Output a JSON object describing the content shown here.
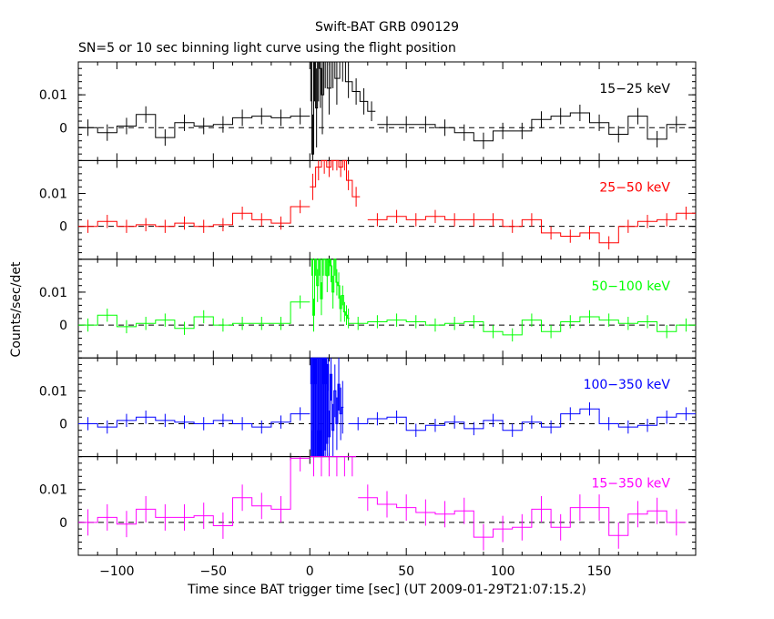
{
  "chart_data": {
    "type": "line",
    "title": "Swift-BAT GRB 090129",
    "subtitle": "SN=5 or 10 sec binning light curve using the flight position",
    "xlabel": "Time since BAT trigger time [sec] (UT 2009-01-29T21:07:15.2)",
    "ylabel": "Counts/sec/det",
    "xlim": [
      -120,
      200
    ],
    "ylim": [
      -0.01,
      0.02
    ],
    "x_ticks": [
      -100,
      -50,
      0,
      50,
      100,
      150
    ],
    "x_tick_labels": [
      "−100",
      "−50",
      "0",
      "50",
      "100",
      "150"
    ],
    "y_ticks": [
      0,
      0.01
    ],
    "y_tick_labels": [
      "0",
      "0.01"
    ],
    "reference_line": 0,
    "panels": [
      {
        "label": "15−25 keV",
        "color": "#000000",
        "pre": {
          "x": [
            -115,
            -105,
            -95,
            -85,
            -75,
            -65,
            -55,
            -45,
            -35,
            -25,
            -15,
            -5
          ],
          "y": [
            0.0,
            -0.0015,
            0.0005,
            0.004,
            -0.003,
            0.0015,
            0.0005,
            0.001,
            0.003,
            0.0035,
            0.003,
            0.0035
          ],
          "err": [
            0.0025,
            0.0025,
            0.0025,
            0.0025,
            0.0025,
            0.0025,
            0.0025,
            0.0025,
            0.0025,
            0.0025,
            0.0025,
            0.0025
          ]
        },
        "burst": {
          "x": [
            0.5,
            1.5,
            2.5,
            3.5,
            4.5,
            5.5,
            6.5,
            8,
            10,
            12,
            14,
            17,
            20,
            24,
            28,
            32
          ],
          "y": [
            0.02,
            -0.008,
            0.02,
            0.006,
            0.02,
            0.018,
            0.01,
            0.02,
            0.012,
            0.02,
            0.015,
            0.02,
            0.014,
            0.011,
            0.008,
            0.005
          ],
          "err": [
            0.012,
            0.012,
            0.012,
            0.012,
            0.012,
            0.012,
            0.012,
            0.008,
            0.008,
            0.008,
            0.008,
            0.006,
            0.005,
            0.004,
            0.004,
            0.003
          ]
        },
        "post": {
          "x": [
            40,
            50,
            60,
            70,
            80,
            90,
            100,
            110,
            120,
            130,
            140,
            150,
            160,
            170,
            180,
            190
          ],
          "y": [
            0.001,
            0.001,
            0.001,
            0.0,
            -0.0015,
            -0.004,
            -0.001,
            -0.001,
            0.0025,
            0.0035,
            0.0045,
            0.0015,
            -0.002,
            0.0035,
            -0.0035,
            0.001
          ],
          "err": [
            0.0025,
            0.0025,
            0.0025,
            0.0025,
            0.0025,
            0.0025,
            0.0025,
            0.0025,
            0.0025,
            0.0025,
            0.0025,
            0.0025,
            0.0025,
            0.0025,
            0.0025,
            0.0025
          ]
        }
      },
      {
        "label": "25−50 keV",
        "color": "#ff0000",
        "pre": {
          "x": [
            -115,
            -105,
            -95,
            -85,
            -75,
            -65,
            -55,
            -45,
            -35,
            -25,
            -15,
            -5
          ],
          "y": [
            0.0,
            0.0015,
            0.0,
            0.0005,
            0.0,
            0.001,
            0.0,
            0.0005,
            0.004,
            0.002,
            0.001,
            0.006
          ],
          "err": [
            0.002,
            0.002,
            0.002,
            0.002,
            0.002,
            0.002,
            0.002,
            0.002,
            0.002,
            0.002,
            0.002,
            0.002
          ]
        },
        "burst": {
          "x": [
            1.5,
            4.5,
            7.5,
            10,
            12,
            14,
            16,
            18,
            20,
            24
          ],
          "y": [
            0.012,
            0.018,
            0.02,
            0.018,
            0.02,
            0.02,
            0.018,
            0.02,
            0.014,
            0.009
          ],
          "err": [
            0.004,
            0.004,
            0.004,
            0.003,
            0.003,
            0.003,
            0.003,
            0.003,
            0.003,
            0.003
          ]
        },
        "post": {
          "x": [
            35,
            45,
            55,
            65,
            75,
            85,
            95,
            105,
            115,
            125,
            135,
            145,
            155,
            165,
            175,
            185,
            195
          ],
          "y": [
            0.002,
            0.003,
            0.002,
            0.003,
            0.002,
            0.002,
            0.002,
            0.0,
            0.002,
            -0.002,
            -0.003,
            -0.002,
            -0.005,
            0.0,
            0.0015,
            0.002,
            0.004
          ],
          "err": [
            0.002,
            0.002,
            0.002,
            0.002,
            0.002,
            0.002,
            0.002,
            0.002,
            0.002,
            0.002,
            0.002,
            0.002,
            0.002,
            0.002,
            0.002,
            0.002,
            0.002
          ]
        }
      },
      {
        "label": "50−100 keV",
        "color": "#00ff00",
        "pre": {
          "x": [
            -115,
            -105,
            -95,
            -85,
            -75,
            -65,
            -55,
            -45,
            -35,
            -25,
            -15,
            -5
          ],
          "y": [
            0.0,
            0.003,
            -0.0005,
            0.0005,
            0.0015,
            -0.001,
            0.0025,
            0.0,
            0.0005,
            0.0005,
            0.0005,
            0.007
          ],
          "err": [
            0.002,
            0.002,
            0.002,
            0.002,
            0.002,
            0.002,
            0.002,
            0.002,
            0.002,
            0.002,
            0.002,
            0.002
          ]
        },
        "burst": {
          "x": [
            1,
            2,
            3,
            4,
            5,
            6,
            7,
            8,
            9,
            10,
            11,
            12,
            13,
            14,
            15,
            16,
            17,
            18,
            19,
            20
          ],
          "y": [
            0.02,
            0.003,
            0.02,
            0.012,
            0.02,
            0.008,
            0.02,
            0.02,
            0.015,
            0.02,
            0.018,
            0.01,
            0.02,
            0.013,
            0.012,
            0.005,
            0.009,
            0.004,
            0.003,
            0.002
          ],
          "err": [
            0.005,
            0.005,
            0.005,
            0.005,
            0.005,
            0.005,
            0.005,
            0.005,
            0.005,
            0.005,
            0.005,
            0.005,
            0.005,
            0.004,
            0.004,
            0.004,
            0.003,
            0.003,
            0.003,
            0.003
          ]
        },
        "post": {
          "x": [
            25,
            35,
            45,
            55,
            65,
            75,
            85,
            95,
            105,
            115,
            125,
            135,
            145,
            155,
            165,
            175,
            185,
            195
          ],
          "y": [
            0.0005,
            0.001,
            0.0015,
            0.001,
            0.0,
            0.0005,
            0.001,
            -0.002,
            -0.003,
            0.0015,
            -0.002,
            0.001,
            0.0025,
            0.0015,
            0.0005,
            0.001,
            -0.002,
            0.0
          ],
          "err": [
            0.002,
            0.002,
            0.002,
            0.002,
            0.002,
            0.002,
            0.002,
            0.002,
            0.002,
            0.002,
            0.002,
            0.002,
            0.002,
            0.002,
            0.002,
            0.002,
            0.002,
            0.002
          ]
        }
      },
      {
        "label": "100−350 keV",
        "color": "#0000ff",
        "pre": {
          "x": [
            -115,
            -105,
            -95,
            -85,
            -75,
            -65,
            -55,
            -45,
            -35,
            -25,
            -15,
            -5
          ],
          "y": [
            0.0,
            -0.001,
            0.001,
            0.002,
            0.001,
            0.0005,
            0.0,
            0.001,
            0.0,
            -0.001,
            0.0005,
            0.003
          ],
          "err": [
            0.002,
            0.002,
            0.002,
            0.002,
            0.002,
            0.002,
            0.002,
            0.002,
            0.002,
            0.002,
            0.002,
            0.002
          ]
        },
        "burst": {
          "x": [
            0.5,
            1,
            1.5,
            2,
            2.5,
            3,
            3.5,
            4,
            4.5,
            5,
            5.5,
            6,
            6.5,
            7,
            7.5,
            8,
            8.5,
            9,
            9.5,
            10,
            11,
            12,
            13,
            14,
            15,
            16,
            17
          ],
          "y": [
            0.02,
            -0.01,
            0.02,
            -0.01,
            0.02,
            -0.01,
            0.02,
            -0.01,
            0.02,
            -0.01,
            0.02,
            -0.01,
            0.02,
            -0.01,
            0.02,
            -0.008,
            0.02,
            -0.006,
            0.018,
            -0.004,
            0.015,
            -0.002,
            0.01,
            0.0,
            0.012,
            0.003,
            0.005
          ],
          "err": [
            0.008,
            0.008,
            0.008,
            0.008,
            0.008,
            0.008,
            0.008,
            0.008,
            0.008,
            0.008,
            0.008,
            0.008,
            0.008,
            0.008,
            0.008,
            0.008,
            0.008,
            0.008,
            0.008,
            0.008,
            0.008,
            0.008,
            0.008,
            0.008,
            0.008,
            0.008,
            0.008
          ]
        },
        "post": {
          "x": [
            25,
            35,
            45,
            55,
            65,
            75,
            85,
            95,
            105,
            115,
            125,
            135,
            145,
            155,
            165,
            175,
            185,
            195
          ],
          "y": [
            0.0,
            0.0015,
            0.002,
            -0.002,
            -0.0005,
            0.0005,
            -0.0015,
            0.001,
            -0.002,
            0.0005,
            -0.001,
            0.003,
            0.0045,
            0.0,
            -0.001,
            -0.0005,
            0.002,
            0.003
          ],
          "err": [
            0.002,
            0.002,
            0.002,
            0.002,
            0.002,
            0.002,
            0.002,
            0.002,
            0.002,
            0.002,
            0.002,
            0.002,
            0.002,
            0.002,
            0.002,
            0.002,
            0.002,
            0.002
          ]
        }
      },
      {
        "label": "15−350 keV",
        "color": "#ff00ff",
        "pre": {
          "x": [
            -115,
            -105,
            -95,
            -85,
            -75,
            -65,
            -55,
            -45,
            -35,
            -25,
            -15,
            -5
          ],
          "y": [
            0.0,
            0.0015,
            -0.0005,
            0.004,
            0.0015,
            0.0015,
            0.002,
            -0.001,
            0.0075,
            0.005,
            0.004,
            0.0195
          ],
          "err": [
            0.004,
            0.004,
            0.004,
            0.004,
            0.004,
            0.004,
            0.004,
            0.004,
            0.004,
            0.004,
            0.004,
            0.004
          ]
        },
        "burst": {
          "x": [
            2,
            6,
            10,
            14,
            18,
            22
          ],
          "y": [
            0.02,
            0.02,
            0.02,
            0.02,
            0.02,
            0.02
          ],
          "err": [
            0.006,
            0.006,
            0.006,
            0.006,
            0.006,
            0.006
          ]
        },
        "post": {
          "x": [
            30,
            40,
            50,
            60,
            70,
            80,
            90,
            100,
            110,
            120,
            130,
            140,
            150,
            160,
            170,
            180,
            190
          ],
          "y": [
            0.0075,
            0.0055,
            0.0045,
            0.003,
            0.0025,
            0.0035,
            -0.0045,
            -0.002,
            -0.0015,
            0.004,
            -0.0015,
            0.0045,
            0.0045,
            -0.004,
            0.0025,
            0.0035,
            0.0
          ],
          "err": [
            0.004,
            0.004,
            0.004,
            0.004,
            0.004,
            0.004,
            0.004,
            0.004,
            0.004,
            0.004,
            0.004,
            0.004,
            0.004,
            0.004,
            0.004,
            0.004,
            0.004
          ]
        }
      }
    ]
  }
}
